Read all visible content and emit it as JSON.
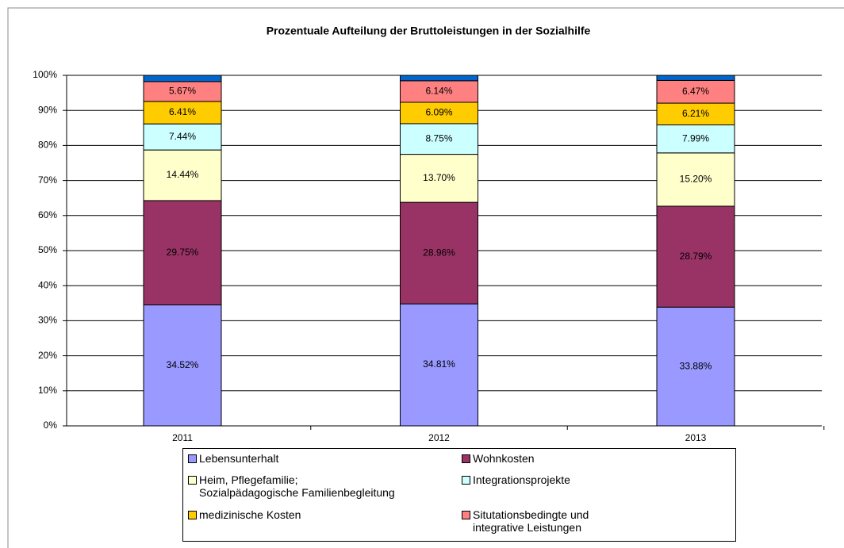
{
  "chart_data": {
    "type": "stacked_bar",
    "title": "Prozentuale Aufteilung der Bruttoleistungen in der Sozialhilfe",
    "categories": [
      "2011",
      "2012",
      "2013"
    ],
    "ylim": [
      0,
      100
    ],
    "yticks": [
      {
        "value": 0,
        "label": "0%"
      },
      {
        "value": 10,
        "label": "10%"
      },
      {
        "value": 20,
        "label": "20%"
      },
      {
        "value": 30,
        "label": "30%"
      },
      {
        "value": 40,
        "label": "40%"
      },
      {
        "value": 50,
        "label": "50%"
      },
      {
        "value": 60,
        "label": "60%"
      },
      {
        "value": 70,
        "label": "70%"
      },
      {
        "value": 80,
        "label": "80%"
      },
      {
        "value": 90,
        "label": "90%"
      },
      {
        "value": 100,
        "label": "100%"
      }
    ],
    "grid": true,
    "series": [
      {
        "name": "Lebensunterhalt",
        "color": "#9999ff",
        "values": [
          34.52,
          34.81,
          33.88
        ],
        "value_labels": [
          "34.52%",
          "34.81%",
          "33.88%"
        ]
      },
      {
        "name": "Wohnkosten",
        "color": "#993366",
        "values": [
          29.75,
          28.96,
          28.79
        ],
        "value_labels": [
          "29.75%",
          "28.96%",
          "28.79%"
        ]
      },
      {
        "name": "Heim, Pflegefamilie;\nSozialpädagogische Familienbegleitung",
        "color": "#ffffcc",
        "values": [
          14.44,
          13.7,
          15.2
        ],
        "value_labels": [
          "14.44%",
          "13.70%",
          "15.20%"
        ]
      },
      {
        "name": "Integrationsprojekte",
        "color": "#ccffff",
        "values": [
          7.44,
          8.75,
          7.99
        ],
        "value_labels": [
          "7.44%",
          "8.75%",
          "7.99%"
        ]
      },
      {
        "name": "medizinische Kosten",
        "color": "#ffcc00",
        "values": [
          6.41,
          6.09,
          6.21
        ],
        "value_labels": [
          "6.41%",
          "6.09%",
          "6.21%"
        ]
      },
      {
        "name": "Situtationsbedingte und\nintegrative Leistungen",
        "color": "#ff8080",
        "values": [
          5.67,
          6.14,
          6.47
        ],
        "value_labels": [
          "5.67%",
          "6.14%",
          "6.47%"
        ]
      },
      {
        "color": "#0066cc",
        "values": [
          1.77,
          1.55,
          1.46
        ]
      }
    ]
  }
}
